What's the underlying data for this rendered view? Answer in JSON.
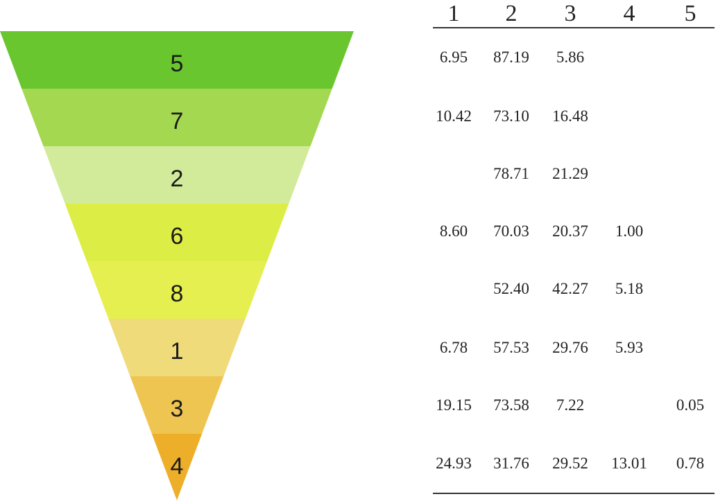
{
  "chart_data": [
    {
      "type": "funnel",
      "levels": [
        "5",
        "7",
        "2",
        "6",
        "8",
        "1",
        "3",
        "4"
      ],
      "colors": [
        "#6ac62e",
        "#a3d850",
        "#d2eb9a",
        "#dced45",
        "#e5ef4f",
        "#efdb79",
        "#efc552",
        "#edaf2a"
      ]
    },
    {
      "type": "table",
      "columns": [
        "1",
        "2",
        "3",
        "4",
        "5"
      ],
      "rows": [
        [
          "6.95",
          "87.19",
          "5.86",
          "",
          ""
        ],
        [
          "10.42",
          "73.10",
          "16.48",
          "",
          ""
        ],
        [
          "",
          "78.71",
          "21.29",
          "",
          ""
        ],
        [
          "8.60",
          "70.03",
          "20.37",
          "1.00",
          ""
        ],
        [
          "",
          "52.40",
          "42.27",
          "5.18",
          ""
        ],
        [
          "6.78",
          "57.53",
          "29.76",
          "5.93",
          ""
        ],
        [
          "19.15",
          "73.58",
          "7.22",
          "",
          "0.05"
        ],
        [
          "24.93",
          "31.76",
          "29.52",
          "13.01",
          "0.78"
        ]
      ]
    }
  ]
}
